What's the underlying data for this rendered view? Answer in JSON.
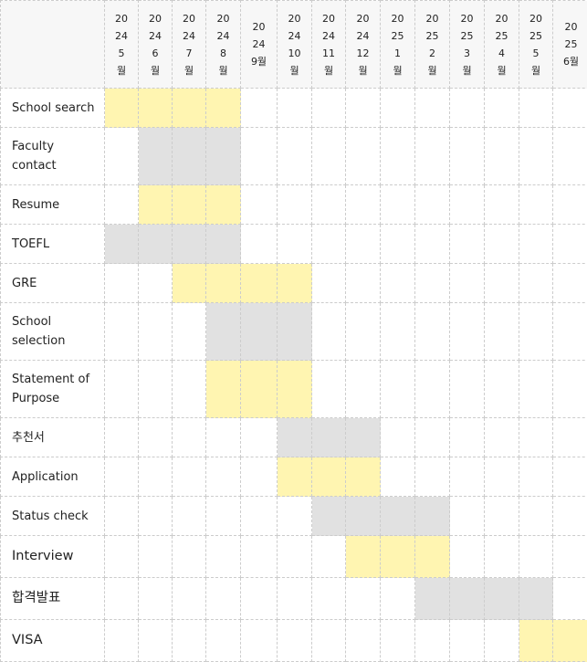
{
  "months": [
    {
      "label": "20\n24\n5\n월"
    },
    {
      "label": "20\n24\n6\n월"
    },
    {
      "label": "20\n24\n7\n월"
    },
    {
      "label": "20\n24\n8\n월"
    },
    {
      "label": "20\n24\n9월"
    },
    {
      "label": "20\n24\n10\n월"
    },
    {
      "label": "20\n24\n11\n월"
    },
    {
      "label": "20\n24\n12\n월"
    },
    {
      "label": "20\n25\n1\n월"
    },
    {
      "label": "20\n25\n2\n월"
    },
    {
      "label": "20\n25\n3\n월"
    },
    {
      "label": "20\n25\n4\n월"
    },
    {
      "label": "20\n25\n5\n월"
    },
    {
      "label": "20\n25\n6월"
    }
  ],
  "colors": {
    "yellow": "#fff5b1",
    "gray": "#e1e1e1"
  },
  "tasks": [
    {
      "name": "School search",
      "start_month": 0,
      "end_month": 3,
      "color": "yellow"
    },
    {
      "name": "Faculty\ncontact",
      "start_month": 1,
      "end_month": 3,
      "color": "gray"
    },
    {
      "name": "Resume",
      "start_month": 1,
      "end_month": 3,
      "color": "yellow"
    },
    {
      "name": "TOEFL",
      "start_month": 0,
      "end_month": 3,
      "color": "gray"
    },
    {
      "name": "GRE",
      "start_month": 2,
      "end_month": 5,
      "color": "yellow"
    },
    {
      "name": "School\nselection",
      "start_month": 3,
      "end_month": 5,
      "color": "gray"
    },
    {
      "name": "Statement of\nPurpose",
      "start_month": 3,
      "end_month": 5,
      "color": "yellow"
    },
    {
      "name": "추천서",
      "start_month": 5,
      "end_month": 7,
      "color": "gray"
    },
    {
      "name": "Application",
      "start_month": 5,
      "end_month": 7,
      "color": "yellow"
    },
    {
      "name": "Status check",
      "start_month": 6,
      "end_month": 9,
      "color": "gray"
    },
    {
      "name": "Interview",
      "start_month": 7,
      "end_month": 9,
      "color": "yellow"
    },
    {
      "name": "합격발표",
      "start_month": 9,
      "end_month": 12,
      "color": "gray"
    },
    {
      "name": "VISA",
      "start_month": 12,
      "end_month": 13,
      "color": "yellow"
    }
  ]
}
